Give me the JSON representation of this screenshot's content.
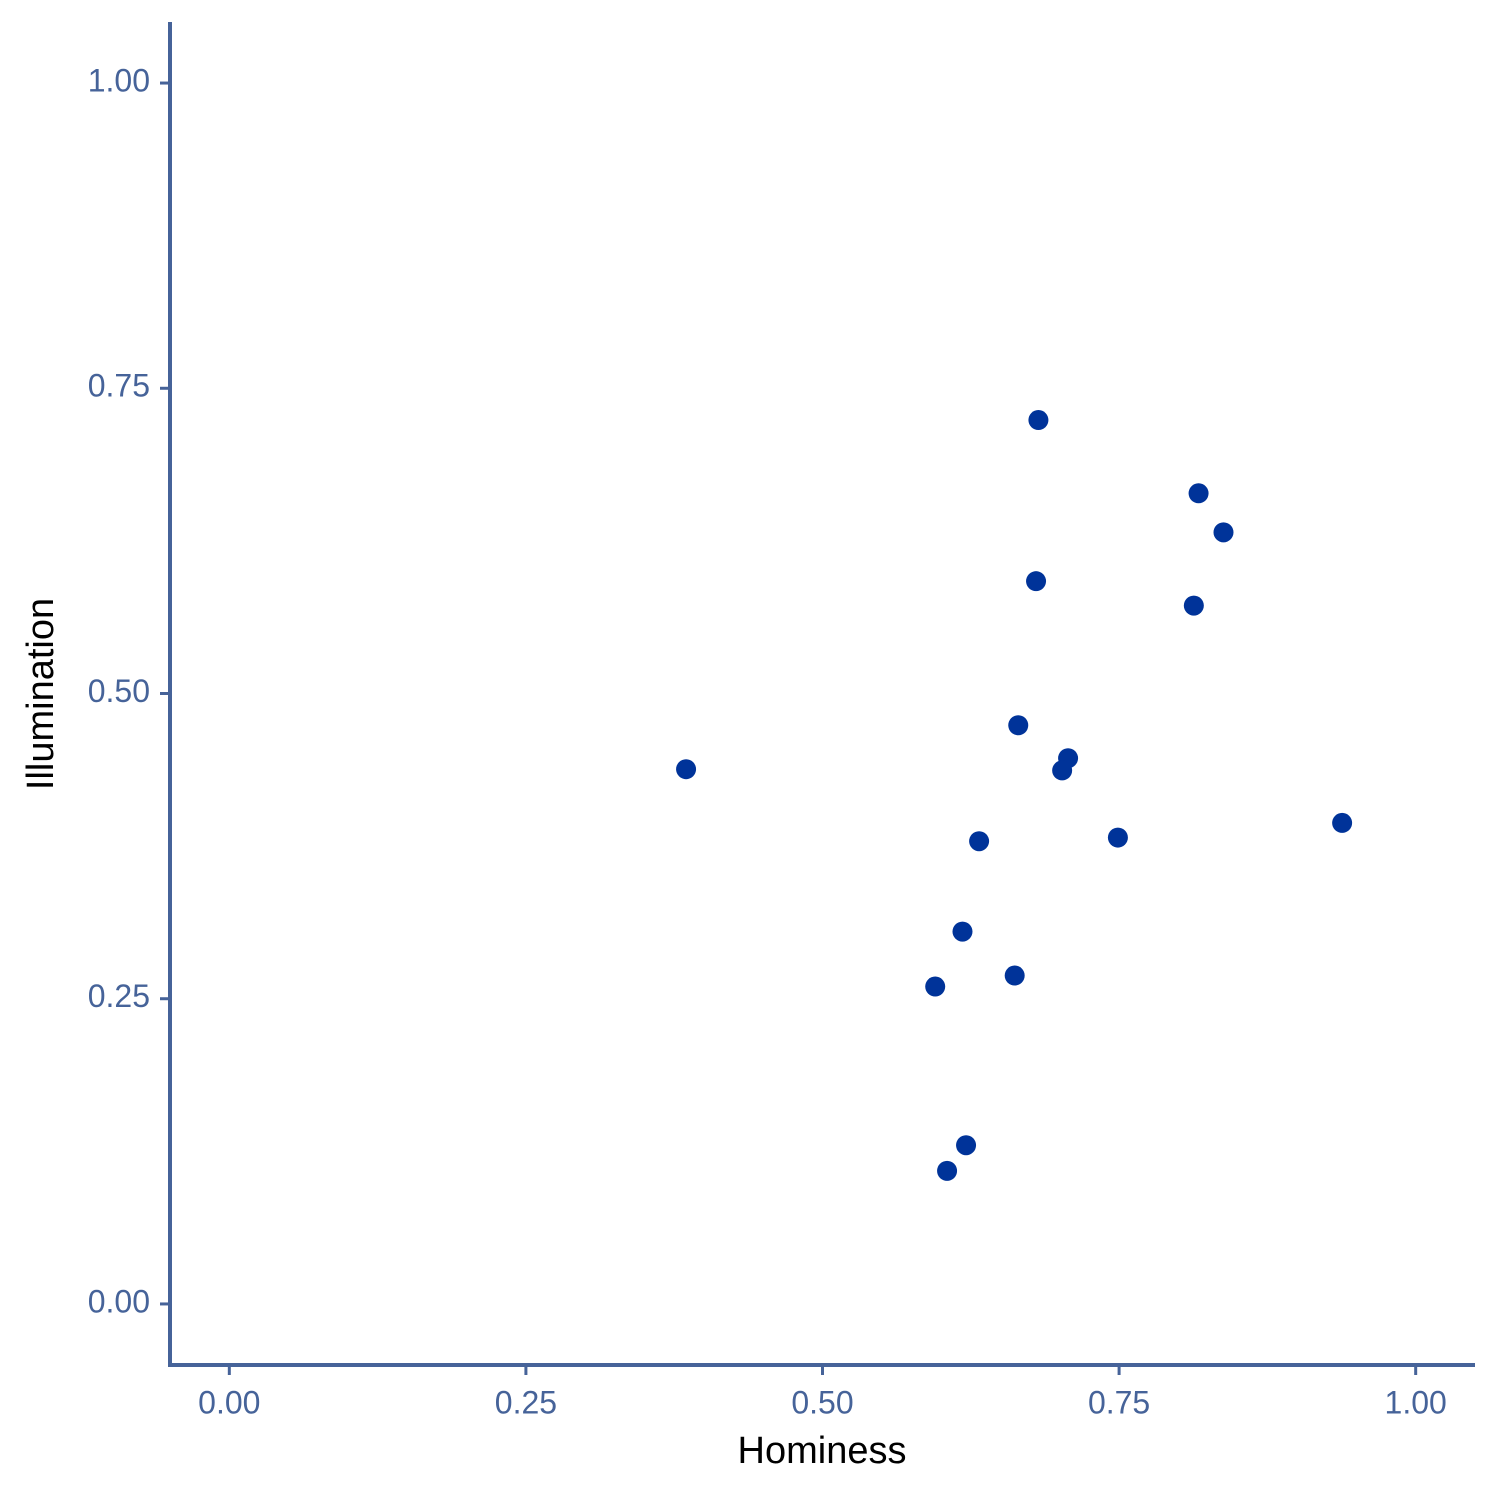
{
  "chart_data": {
    "type": "scatter",
    "x_label": "Hominess",
    "y_label": "Illumination",
    "x": [
      0.385,
      0.682,
      0.817,
      0.838,
      0.68,
      0.813,
      0.665,
      0.707,
      0.702,
      0.938,
      0.749,
      0.632,
      0.618,
      0.662,
      0.595,
      0.621,
      0.605
    ],
    "values": [
      0.438,
      0.724,
      0.664,
      0.632,
      0.592,
      0.572,
      0.474,
      0.447,
      0.437,
      0.394,
      0.382,
      0.379,
      0.305,
      0.269,
      0.26,
      0.13,
      0.109
    ],
    "color": "#003399",
    "axis_color": "#466399",
    "xlim": [
      -0.05,
      1.05
    ],
    "ylim": [
      -0.05,
      1.05
    ],
    "xticks": [
      {
        "value": 0,
        "label": "0.00"
      },
      {
        "value": 0.25,
        "label": "0.25"
      },
      {
        "value": 0.5,
        "label": "0.50"
      },
      {
        "value": 0.75,
        "label": "0.75"
      },
      {
        "value": 1,
        "label": "1.00"
      }
    ],
    "yticks": [
      {
        "value": 0,
        "label": "0.00"
      },
      {
        "value": 0.25,
        "label": "0.25"
      },
      {
        "value": 0.5,
        "label": "0.50"
      },
      {
        "value": 0.75,
        "label": "0.75"
      },
      {
        "value": 1,
        "label": "1.00"
      }
    ]
  }
}
